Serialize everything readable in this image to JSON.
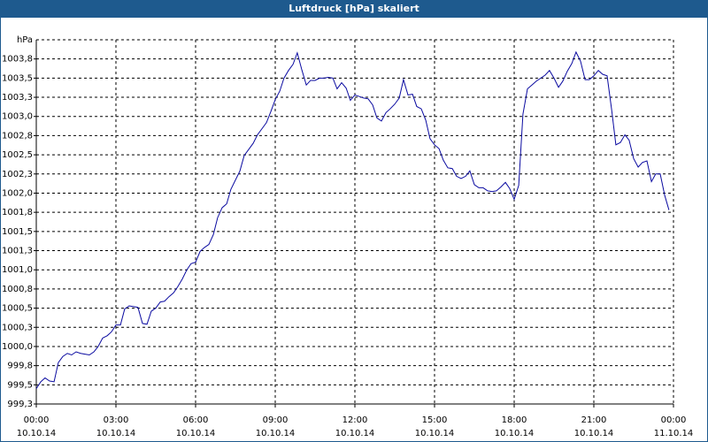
{
  "chart_data": {
    "type": "line",
    "title": "Luftdruck [hPa] skaliert",
    "y_label": "hPa",
    "xlim": [
      0,
      24
    ],
    "ylim": [
      999.25,
      1004
    ],
    "xticks": [
      {
        "value": 0,
        "label": "00:00"
      },
      {
        "value": 3,
        "label": "03:00"
      },
      {
        "value": 6,
        "label": "06:00"
      },
      {
        "value": 9,
        "label": "09:00"
      },
      {
        "value": 12,
        "label": "12:00"
      },
      {
        "value": 15,
        "label": "15:00"
      },
      {
        "value": 18,
        "label": "18:00"
      },
      {
        "value": 21,
        "label": "21:00"
      },
      {
        "value": 24,
        "label": "00:00"
      }
    ],
    "xtick_dates": [
      "10.10.14",
      "10.10.14",
      "10.10.14",
      "10.10.14",
      "10.10.14",
      "10.10.14",
      "10.10.14",
      "10.10.14",
      "11.10.14"
    ],
    "yticks": [
      {
        "value": 999.25,
        "label": "999,3"
      },
      {
        "value": 999.5,
        "label": "999,5"
      },
      {
        "value": 999.75,
        "label": "999,8"
      },
      {
        "value": 1000,
        "label": "1000,0"
      },
      {
        "value": 1000.25,
        "label": "1000,3"
      },
      {
        "value": 1000.5,
        "label": "1000,5"
      },
      {
        "value": 1000.75,
        "label": "1000,8"
      },
      {
        "value": 1001,
        "label": "1001,0"
      },
      {
        "value": 1001.25,
        "label": "1001,3"
      },
      {
        "value": 1001.5,
        "label": "1001,5"
      },
      {
        "value": 1001.75,
        "label": "1001,8"
      },
      {
        "value": 1002,
        "label": "1002,0"
      },
      {
        "value": 1002.25,
        "label": "1002,3"
      },
      {
        "value": 1002.5,
        "label": "1002,5"
      },
      {
        "value": 1002.75,
        "label": "1002,8"
      },
      {
        "value": 1003,
        "label": "1003,0"
      },
      {
        "value": 1003.25,
        "label": "1003,3"
      },
      {
        "value": 1003.5,
        "label": "1003,5"
      },
      {
        "value": 1003.75,
        "label": "1003,8"
      }
    ],
    "grid": true,
    "x": [
      0,
      0.17,
      0.33,
      0.5,
      0.67,
      0.83,
      1,
      1.17,
      1.33,
      1.5,
      1.67,
      1.83,
      2,
      2.17,
      2.33,
      2.5,
      2.67,
      2.83,
      3,
      3.17,
      3.33,
      3.5,
      3.67,
      3.83,
      4,
      4.17,
      4.33,
      4.5,
      4.67,
      4.83,
      5,
      5.17,
      5.33,
      5.5,
      5.67,
      5.83,
      6,
      6.17,
      6.33,
      6.5,
      6.67,
      6.83,
      7,
      7.17,
      7.33,
      7.5,
      7.67,
      7.83,
      8,
      8.17,
      8.33,
      8.5,
      8.67,
      8.83,
      9,
      9.17,
      9.33,
      9.5,
      9.67,
      9.83,
      10,
      10.17,
      10.33,
      10.5,
      10.67,
      10.83,
      11,
      11.17,
      11.33,
      11.5,
      11.67,
      11.83,
      12,
      12.17,
      12.33,
      12.5,
      12.67,
      12.83,
      13,
      13.17,
      13.33,
      13.5,
      13.67,
      13.83,
      14,
      14.17,
      14.33,
      14.5,
      14.67,
      14.83,
      15,
      15.17,
      15.33,
      15.5,
      15.67,
      15.83,
      16,
      16.17,
      16.33,
      16.5,
      16.67,
      16.83,
      17,
      17.17,
      17.33,
      17.5,
      17.67,
      17.83,
      18,
      18.17,
      18.33,
      18.5,
      18.67,
      18.83,
      19,
      19.17,
      19.33,
      19.5,
      19.67,
      19.83,
      20,
      20.17,
      20.33,
      20.5,
      20.67,
      20.83,
      21,
      21.17,
      21.33,
      21.5,
      21.67,
      21.83,
      22,
      22.17,
      22.33,
      22.5,
      22.67,
      22.83,
      23,
      23.17,
      23.33,
      23.5,
      23.67,
      23.83
    ],
    "series": [
      {
        "color": "#0a0aa0",
        "values": [
          999.45,
          999.54,
          999.59,
          999.55,
          999.54,
          999.79,
          999.87,
          999.91,
          999.89,
          999.93,
          999.91,
          999.9,
          999.89,
          999.93,
          1000.0,
          1000.11,
          1000.14,
          1000.19,
          1000.28,
          1000.28,
          1000.49,
          1000.53,
          1000.52,
          1000.51,
          1000.3,
          1000.29,
          1000.46,
          1000.5,
          1000.58,
          1000.59,
          1000.65,
          1000.7,
          1000.78,
          1000.88,
          1001.0,
          1001.08,
          1001.1,
          1001.24,
          1001.29,
          1001.33,
          1001.46,
          1001.68,
          1001.81,
          1001.86,
          1002.05,
          1002.17,
          1002.29,
          1002.49,
          1002.57,
          1002.65,
          1002.76,
          1002.84,
          1002.92,
          1003.06,
          1003.22,
          1003.33,
          1003.5,
          1003.6,
          1003.68,
          1003.83,
          1003.61,
          1003.41,
          1003.47,
          1003.47,
          1003.5,
          1003.5,
          1003.51,
          1003.5,
          1003.36,
          1003.44,
          1003.37,
          1003.21,
          1003.28,
          1003.26,
          1003.24,
          1003.23,
          1003.15,
          1002.98,
          1002.94,
          1003.05,
          1003.1,
          1003.16,
          1003.24,
          1003.48,
          1003.28,
          1003.29,
          1003.13,
          1003.1,
          1002.95,
          1002.71,
          1002.63,
          1002.58,
          1002.43,
          1002.33,
          1002.32,
          1002.22,
          1002.19,
          1002.22,
          1002.29,
          1002.11,
          1002.07,
          1002.07,
          1002.03,
          1002.02,
          1002.03,
          1002.08,
          1002.14,
          1002.06,
          1001.92,
          1002.1,
          1003.03,
          1003.36,
          1003.41,
          1003.46,
          1003.5,
          1003.54,
          1003.6,
          1003.5,
          1003.38,
          1003.46,
          1003.59,
          1003.69,
          1003.84,
          1003.72,
          1003.48,
          1003.48,
          1003.53,
          1003.6,
          1003.55,
          1003.53,
          1003.09,
          1002.63,
          1002.66,
          1002.76,
          1002.69,
          1002.45,
          1002.34,
          1002.4,
          1002.42,
          1002.15,
          1002.25,
          1002.25,
          1001.97,
          1001.78
        ]
      }
    ]
  }
}
